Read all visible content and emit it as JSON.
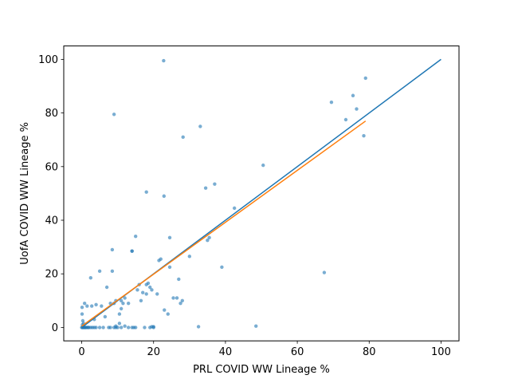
{
  "chart_data": {
    "type": "scatter",
    "title": "",
    "xlabel": "PRL COVID WW Lineage %",
    "ylabel": "UofA COVID WW Lineage %",
    "xlim": [
      -5,
      105
    ],
    "ylim": [
      -5,
      105
    ],
    "xticks": [
      0,
      20,
      40,
      60,
      80,
      100
    ],
    "yticks": [
      0,
      20,
      40,
      60,
      80,
      100
    ],
    "grid": false,
    "legend": "none",
    "points": {
      "color": "#1f77b4",
      "alpha": 0.6,
      "x": [
        0,
        0.2,
        0.4,
        0.6,
        0.8,
        1.0,
        1.2,
        1.5,
        1.8,
        2.0,
        2.5,
        3.0,
        3.5,
        4.0,
        5.0,
        6.0,
        7.5,
        8.0,
        9.0,
        9.5,
        10.0,
        11.0,
        13.0,
        14.0,
        14.5,
        15.0,
        17.5,
        19.0,
        20.0,
        0.1,
        0.3,
        0.2,
        0.5,
        0.1,
        0.8,
        1.5,
        2.5,
        2.8,
        3.5,
        4.0,
        5.0,
        5.5,
        6.5,
        7.0,
        8.0,
        8.5,
        9.0,
        9.5,
        10.5,
        11.0,
        11.5,
        12.0,
        13.0,
        14.0,
        15.0,
        15.5,
        16.0,
        16.5,
        17.0,
        18.0,
        18.5,
        19.0,
        19.5,
        20.0,
        21.0,
        21.5,
        22.0,
        23.0,
        24.0,
        24.5,
        25.5,
        26.5,
        27.0,
        27.5,
        28.0,
        30.0,
        35.0,
        35.5,
        39.0,
        42.5,
        24.5,
        9.0,
        22.8,
        18.0,
        22.9,
        28.2,
        33.0,
        34.5,
        37.0,
        50.5,
        32.5,
        48.5,
        67.5,
        69.5,
        73.5,
        75.5,
        76.5,
        78.5,
        79.0,
        9.5,
        8.5,
        11.0,
        10.5,
        14.0,
        18.0,
        19.5,
        12.0
      ],
      "y": [
        0,
        0,
        0,
        0,
        0,
        0,
        0,
        0,
        0,
        0,
        0,
        0,
        0,
        0,
        0,
        0,
        0,
        0,
        0,
        0,
        0,
        0,
        0,
        0,
        0,
        0,
        0,
        0,
        0,
        7.5,
        2.5,
        1.0,
        1.5,
        5.0,
        9.0,
        8.0,
        18.5,
        8.0,
        3.0,
        8.5,
        21.0,
        8.0,
        4.0,
        15.0,
        9.0,
        21.0,
        9.0,
        10.0,
        5.0,
        7.0,
        9.0,
        11.0,
        9.0,
        28.5,
        34.0,
        14.0,
        16.0,
        10.0,
        13.0,
        12.5,
        16.5,
        15.0,
        14.0,
        0.3,
        12.5,
        25.0,
        25.5,
        6.5,
        5.0,
        22.5,
        11.0,
        11.0,
        18.0,
        9.0,
        10.0,
        26.5,
        32.5,
        33.5,
        22.5,
        44.5,
        33.5,
        79.5,
        99.5,
        50.5,
        49.0,
        71.0,
        75.0,
        52.0,
        53.5,
        60.5,
        0.3,
        0.5,
        20.5,
        84.0,
        77.5,
        86.5,
        81.5,
        71.5,
        93.0,
        0.5,
        29.0,
        10.0,
        1.5,
        28.5,
        16.0,
        0.3,
        0.5
      ]
    },
    "series": [
      {
        "type": "line",
        "color": "#1f77b4",
        "x": [
          0,
          100
        ],
        "y": [
          0,
          100
        ]
      },
      {
        "type": "line",
        "color": "#ff7f0e",
        "x": [
          0,
          79
        ],
        "y": [
          0.5,
          77
        ]
      }
    ]
  }
}
